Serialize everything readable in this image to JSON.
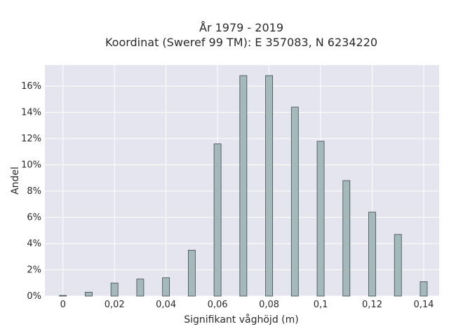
{
  "chart_data": {
    "type": "bar",
    "title": "År 1979 - 2019",
    "subtitle": "Koordinat (Sweref 99 TM): E 357083, N 6234220",
    "xlabel": "Signifikant våghöjd (m)",
    "ylabel": "Andel",
    "x": [
      0,
      0.01,
      0.02,
      0.03,
      0.04,
      0.05,
      0.06,
      0.07,
      0.08,
      0.09,
      0.1,
      0.11,
      0.12,
      0.13,
      0.14
    ],
    "values": [
      0.05,
      0.3,
      1.0,
      1.3,
      1.4,
      3.5,
      11.6,
      16.8,
      16.8,
      14.4,
      11.8,
      8.8,
      6.4,
      4.7,
      1.1
    ],
    "xlim": [
      -0.007,
      0.146
    ],
    "ylim": [
      0,
      17.6
    ],
    "xticks": [
      0,
      0.02,
      0.04,
      0.06,
      0.08,
      0.1,
      0.12,
      0.14
    ],
    "xtick_labels": [
      "0",
      "0,02",
      "0,04",
      "0,06",
      "0,08",
      "0,1",
      "0,12",
      "0,14"
    ],
    "yticks": [
      0,
      2,
      4,
      6,
      8,
      10,
      12,
      14,
      16
    ],
    "ytick_labels": [
      "0%",
      "2%",
      "4%",
      "6%",
      "8%",
      "10%",
      "12%",
      "14%",
      "16%"
    ],
    "grid": true,
    "colors": {
      "plot_background": "#e5e5ef",
      "grid": "#ffffff",
      "bar_fill": "#a3b9bb",
      "bar_stroke": "#3d4a4a"
    }
  }
}
